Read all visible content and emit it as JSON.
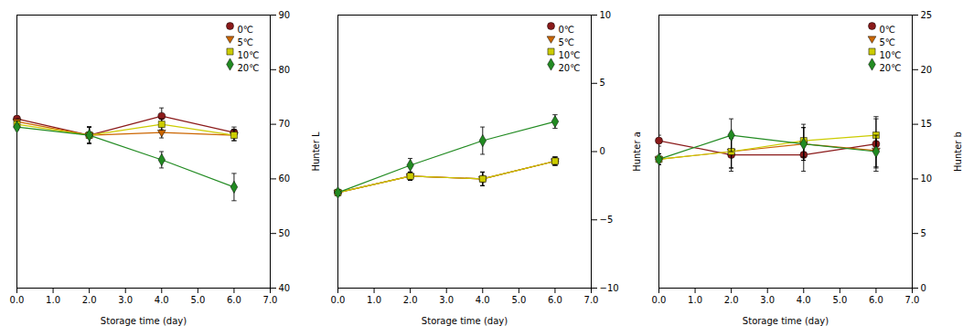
{
  "chart_data": [
    {
      "type": "line",
      "xlabel": "Storage time (day)",
      "ylabel": "Hunter L",
      "x": [
        0,
        2,
        4,
        6
      ],
      "series": [
        {
          "name": "0℃",
          "color": "#8B1A1A",
          "marker": "circle",
          "values": [
            71.0,
            68.0,
            71.5,
            68.5
          ],
          "errors": [
            0.5,
            1.5,
            1.5,
            1.0
          ]
        },
        {
          "name": "5℃",
          "color": "#CC6600",
          "marker": "triangle-down",
          "values": [
            70.5,
            68.0,
            68.5,
            68.0
          ],
          "errors": [
            0.5,
            1.5,
            1.0,
            1.0
          ]
        },
        {
          "name": "10℃",
          "color": "#CCCC00",
          "marker": "square",
          "values": [
            70.0,
            68.0,
            70.0,
            68.0
          ],
          "errors": [
            0.5,
            1.5,
            1.0,
            1.0
          ]
        },
        {
          "name": "20℃",
          "color": "#228B22",
          "marker": "diamond",
          "values": [
            69.5,
            68.0,
            63.5,
            58.5
          ],
          "errors": [
            0.5,
            1.5,
            1.5,
            2.5
          ]
        }
      ],
      "xlim": [
        0,
        7
      ],
      "xticks": [
        0,
        1,
        2,
        3,
        4,
        5,
        6,
        7
      ],
      "ylim": [
        40,
        90
      ],
      "yticks": [
        40,
        50,
        60,
        70,
        80,
        90
      ],
      "grid": false,
      "legend": "upper right"
    },
    {
      "type": "line",
      "xlabel": "Storage time (day)",
      "ylabel": "Hunter a",
      "x": [
        0,
        2,
        4,
        6
      ],
      "series": [
        {
          "name": "0℃",
          "color": "#8B1A1A",
          "marker": "circle",
          "values": [
            -3.0,
            -1.8,
            -2.0,
            -0.7
          ],
          "errors": [
            0.2,
            0.3,
            0.5,
            0.3
          ]
        },
        {
          "name": "5℃",
          "color": "#CC6600",
          "marker": "triangle-down",
          "values": [
            -3.0,
            -1.8,
            -2.0,
            -0.7
          ],
          "errors": [
            0.2,
            0.3,
            0.5,
            0.3
          ]
        },
        {
          "name": "10℃",
          "color": "#CCCC00",
          "marker": "square",
          "values": [
            -3.0,
            -1.8,
            -2.0,
            -0.7
          ],
          "errors": [
            0.2,
            0.3,
            0.5,
            0.3
          ]
        },
        {
          "name": "20℃",
          "color": "#228B22",
          "marker": "diamond",
          "values": [
            -3.0,
            -1.0,
            0.8,
            2.2
          ],
          "errors": [
            0.2,
            0.5,
            1.0,
            0.5
          ]
        }
      ],
      "xlim": [
        0,
        7
      ],
      "xticks": [
        0,
        1,
        2,
        3,
        4,
        5,
        6,
        7
      ],
      "ylim": [
        -10,
        10
      ],
      "yticks": [
        -10,
        -5,
        0,
        5,
        10
      ],
      "grid": false,
      "legend": "upper right"
    },
    {
      "type": "line",
      "xlabel": "Storage time (day)",
      "ylabel": "Hunter b",
      "x": [
        0,
        2,
        4,
        6
      ],
      "series": [
        {
          "name": "0℃",
          "color": "#8B1A1A",
          "marker": "circle",
          "values": [
            13.5,
            12.2,
            12.2,
            13.2
          ],
          "errors": [
            0.5,
            1.5,
            1.5,
            2.5
          ]
        },
        {
          "name": "5℃",
          "color": "#CC6600",
          "marker": "triangle-down",
          "values": [
            11.8,
            12.5,
            13.2,
            12.6
          ],
          "errors": [
            0.5,
            1.5,
            1.5,
            1.5
          ]
        },
        {
          "name": "10℃",
          "color": "#CCCC00",
          "marker": "square",
          "values": [
            11.8,
            12.5,
            13.5,
            14.0
          ],
          "errors": [
            0.5,
            1.5,
            1.5,
            1.5
          ]
        },
        {
          "name": "20℃",
          "color": "#228B22",
          "marker": "diamond",
          "values": [
            11.8,
            14.0,
            13.2,
            12.5
          ],
          "errors": [
            0.5,
            1.5,
            1.5,
            1.5
          ]
        }
      ],
      "xlim": [
        0,
        7
      ],
      "xticks": [
        0,
        1,
        2,
        3,
        4,
        5,
        6,
        7
      ],
      "ylim": [
        0,
        25
      ],
      "yticks": [
        0,
        5,
        10,
        15,
        20,
        25
      ],
      "grid": false,
      "legend": "upper right"
    }
  ]
}
